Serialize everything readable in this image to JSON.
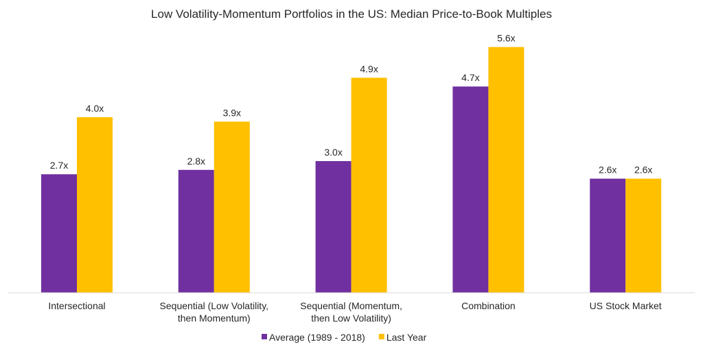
{
  "chart_data": {
    "type": "bar",
    "title": "Low Volatility-Momentum Portfolios in the US: Median Price-to-Book Multiples",
    "categories": [
      [
        "Intersectional"
      ],
      [
        "Sequential (Low Volatility,",
        "then Momentum)"
      ],
      [
        "Sequential (Momentum,",
        "then Low Volatility)"
      ],
      [
        "Combination"
      ],
      [
        "US Stock Market"
      ]
    ],
    "series": [
      {
        "name": "Average (1989 - 2018)",
        "color": "#7030A0",
        "values": [
          2.7,
          2.8,
          3.0,
          4.7,
          2.6
        ],
        "labels": [
          "2.7x",
          "2.8x",
          "3.0x",
          "4.7x",
          "2.6x"
        ]
      },
      {
        "name": "Last Year",
        "color": "#FFC000",
        "values": [
          4.0,
          3.9,
          4.9,
          5.6,
          2.6
        ],
        "labels": [
          "4.0x",
          "3.9x",
          "4.9x",
          "5.6x",
          "2.6x"
        ]
      }
    ],
    "ylim": [
      0,
      6.0
    ],
    "grid": false,
    "legend": "bottom"
  }
}
